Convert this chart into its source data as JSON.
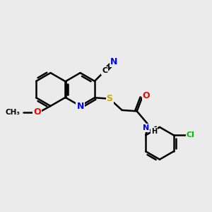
{
  "bg_color": "#ebebeb",
  "bond_color": "#000000",
  "bond_width": 1.8,
  "atom_colors": {
    "N": "#0000ff",
    "O": "#ff0000",
    "S": "#ccaa00",
    "Cl": "#00bb00",
    "C": "#000000",
    "H": "#000000"
  },
  "font_size": 8,
  "title": "",
  "xlim": [
    0,
    10
  ],
  "ylim": [
    0,
    10
  ]
}
